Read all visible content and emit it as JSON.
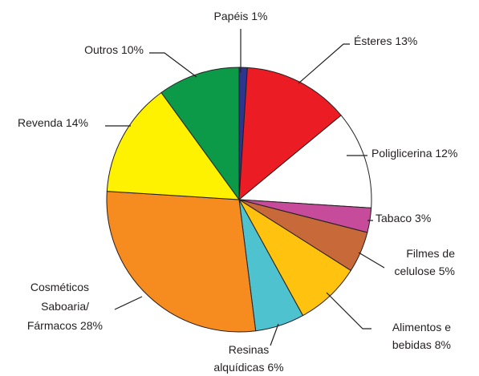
{
  "chart_data": {
    "type": "pie",
    "title": "",
    "start_angle_deg": 0,
    "direction": "clockwise",
    "slices": [
      {
        "label": "Papéis 1%",
        "value": 1,
        "color": "#2c3590"
      },
      {
        "label": "Ésteres 13%",
        "value": 13,
        "color": "#ec1c24"
      },
      {
        "label": "Poliglicerina 12%",
        "value": 12,
        "color": "#ffffff"
      },
      {
        "label": "Tabaco 3%",
        "value": 3,
        "color": "#c64b9b"
      },
      {
        "label": "Filmes de celulose 5%",
        "value": 5,
        "color": "#c8693a"
      },
      {
        "label": "Alimentos e bebidas 8%",
        "value": 8,
        "color": "#ffc20e"
      },
      {
        "label": "Resinas alquídicas 6%",
        "value": 6,
        "color": "#4fc2d0"
      },
      {
        "label": "Cosméticos Saboaria/ Fármacos 28%",
        "value": 28,
        "color": "#f68b1f"
      },
      {
        "label": "Revenda 14%",
        "value": 14,
        "color": "#fff200"
      },
      {
        "label": "Outros 10%",
        "value": 10,
        "color": "#0c9a48"
      }
    ],
    "labels": {
      "papeis": "Papéis 1%",
      "esteres": "Ésteres 13%",
      "poliglicerina": "Poliglicerina 12%",
      "tabaco": "Tabaco 3%",
      "filmes_1": "Filmes de",
      "filmes_2": "celulose 5%",
      "alimentos_1": "Alimentos e",
      "alimentos_2": "bebidas 8%",
      "resinas_1": "Resinas",
      "resinas_2": "alquídicas 6%",
      "cosmeticos_1": "Cosméticos",
      "cosmeticos_2": "Saboaria/",
      "cosmeticos_3": "Fármacos 28%",
      "revenda": "Revenda 14%",
      "outros": "Outros 10%"
    },
    "edge_color": "#231f20"
  }
}
